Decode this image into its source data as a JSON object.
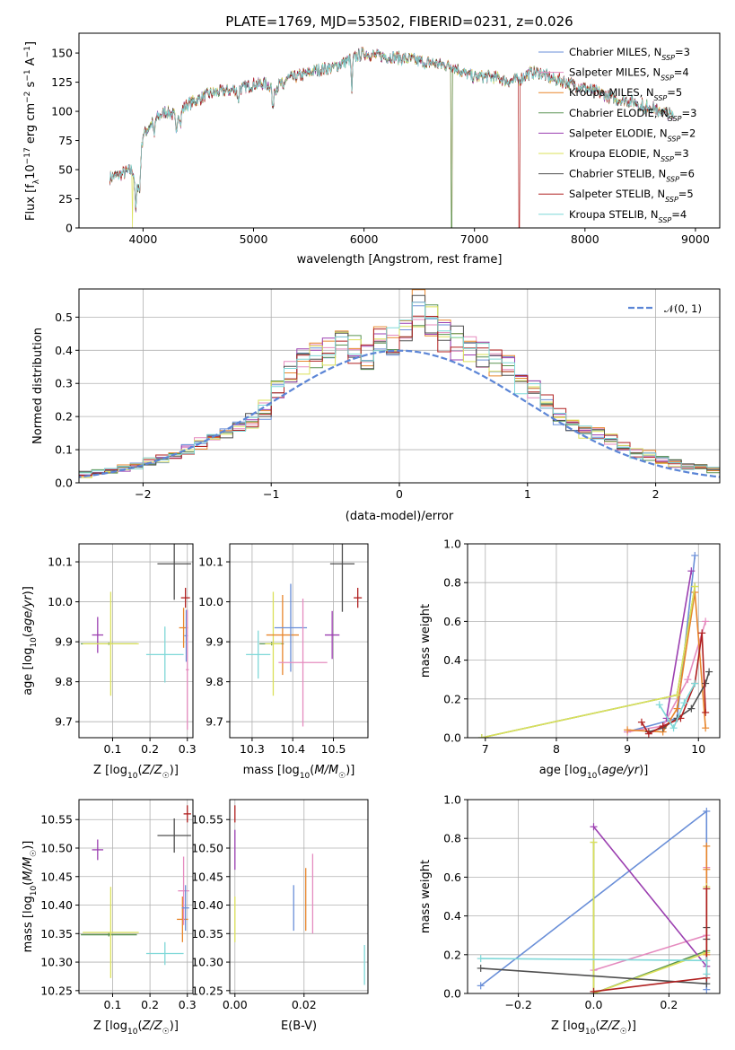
{
  "figure": {
    "title": "PLATE=1769, MJD=53502, FIBERID=0231, z=0.026"
  },
  "chart_data": [
    {
      "id": "spectrum",
      "type": "line",
      "title": "PLATE=1769, MJD=53502, FIBERID=0231, z=0.026",
      "xlabel": "wavelength [Angstrom, rest frame]",
      "ylabel": "Flux [f_λ 10^-17 erg cm^-2 s^-1 A^-1]",
      "xlim": [
        3420,
        9220
      ],
      "ylim": [
        0,
        167
      ],
      "xticks": [
        4000,
        5000,
        6000,
        7000,
        8000,
        9000
      ],
      "yticks": [
        0,
        25,
        50,
        75,
        100,
        125,
        150
      ],
      "grid": false,
      "legend_position": "upper-right",
      "continuum": {
        "x": [
          3700,
          3800,
          3900,
          3950,
          4000,
          4100,
          4200,
          4300,
          4400,
          4500,
          4600,
          4700,
          4800,
          4900,
          5000,
          5100,
          5200,
          5300,
          5400,
          5500,
          5600,
          5700,
          5800,
          5900,
          6000,
          6100,
          6200,
          6300,
          6400,
          6500,
          6600,
          6700,
          6800,
          6900,
          7000,
          7100,
          7200,
          7300,
          7400,
          7500,
          7600,
          7700,
          7800,
          7900,
          8000,
          8100,
          8200,
          8300,
          8400,
          8500,
          8600,
          8700,
          8800
        ],
        "y": [
          43,
          46,
          50,
          35,
          80,
          92,
          100,
          96,
          106,
          110,
          115,
          117,
          118,
          120,
          123,
          124,
          120,
          128,
          130,
          133,
          136,
          137,
          141,
          146,
          150,
          148,
          147,
          146,
          145,
          143,
          142,
          140,
          139,
          133,
          129,
          130,
          129,
          126,
          127,
          133,
          133,
          128,
          126,
          123,
          120,
          117,
          113,
          110,
          109,
          107,
          104,
          100,
          96
        ]
      },
      "series": [
        {
          "label": "Chabrier MILES, N_SSP=3",
          "color": "#6a8fd8"
        },
        {
          "label": "Salpeter MILES, N_SSP=4",
          "color": "#e58bbf"
        },
        {
          "label": "Kroupa MILES, N_SSP=5",
          "color": "#e8862c"
        },
        {
          "label": "Chabrier ELODIE, N_SSP=3",
          "color": "#5a9452"
        },
        {
          "label": "Salpeter ELODIE, N_SSP=2",
          "color": "#9b3fb0"
        },
        {
          "label": "Kroupa ELODIE, N_SSP=3",
          "color": "#dbe05a"
        },
        {
          "label": "Chabrier STELIB, N_SSP=6",
          "color": "#4f4f4f"
        },
        {
          "label": "Salpeter STELIB, N_SSP=5",
          "color": "#b02020"
        },
        {
          "label": "Kroupa STELIB, N_SSP=4",
          "color": "#7fd8d8"
        }
      ]
    },
    {
      "id": "residuals",
      "type": "histogram",
      "xlabel": "(data-model)/error",
      "ylabel": "Normed distribution",
      "xlim": [
        -2.5,
        2.5
      ],
      "ylim": [
        0,
        0.585
      ],
      "xticks": [
        -2,
        -1,
        0,
        1,
        2
      ],
      "yticks": [
        0.0,
        0.1,
        0.2,
        0.3,
        0.4,
        0.5
      ],
      "grid": true,
      "legend_position": "upper-right",
      "reference": {
        "label": "𝒩(0, 1)",
        "color": "#5b85d6",
        "mean": 0,
        "sigma": 1
      },
      "bin_width": 0.1,
      "envelope": [
        0.01,
        0.015,
        0.02,
        0.022,
        0.03,
        0.025,
        0.035,
        0.04,
        0.045,
        0.05,
        0.06,
        0.075,
        0.085,
        0.1,
        0.12,
        0.14,
        0.15,
        0.17,
        0.19,
        0.22,
        0.28,
        0.33,
        0.36,
        0.38,
        0.4,
        0.44,
        0.41,
        0.38,
        0.44,
        0.42,
        0.45,
        0.52,
        0.48,
        0.44,
        0.42,
        0.4,
        0.38,
        0.37,
        0.35,
        0.31,
        0.29,
        0.25,
        0.2,
        0.17,
        0.16,
        0.15,
        0.13,
        0.11,
        0.09,
        0.08,
        0.07,
        0.06,
        0.05,
        0.045,
        0.04,
        0.035,
        0.03,
        0.025,
        0.02,
        0.015
      ]
    },
    {
      "id": "age_vs_Z",
      "type": "scatter",
      "xlabel": "Z [log10(Z/Z☉)]",
      "ylabel": "age [log10(age/yr)]",
      "xlim": [
        0.01,
        0.315
      ],
      "ylim": [
        9.66,
        10.145
      ],
      "xticks": [
        0.1,
        0.2,
        0.3
      ],
      "yticks": [
        9.7,
        9.8,
        9.9,
        10.0,
        10.1
      ],
      "grid": true,
      "points": [
        {
          "x": 0.06,
          "y": 9.917,
          "xerr": 0.015,
          "yerr": 0.045,
          "c": 4
        },
        {
          "x": 0.09,
          "y": 9.895,
          "xerr": 0.075,
          "yerr": 0.003,
          "c": 3
        },
        {
          "x": 0.095,
          "y": 9.895,
          "xerr": 0.075,
          "yerr": 0.13,
          "c": 5
        },
        {
          "x": 0.24,
          "y": 9.868,
          "xerr": 0.05,
          "yerr": 0.07,
          "c": 8
        },
        {
          "x": 0.265,
          "y": 10.095,
          "xerr": 0.045,
          "yerr": 0.09,
          "c": 6
        },
        {
          "x": 0.29,
          "y": 9.935,
          "xerr": 0.012,
          "yerr": 0.05,
          "c": 2
        },
        {
          "x": 0.295,
          "y": 10.01,
          "xerr": 0.012,
          "yerr": 0.025,
          "c": 7
        },
        {
          "x": 0.297,
          "y": 9.915,
          "xerr": 0.005,
          "yerr": 0.065,
          "c": 0
        },
        {
          "x": 0.3,
          "y": 9.83,
          "xerr": 0.004,
          "yerr": 0.15,
          "c": 1
        }
      ]
    },
    {
      "id": "age_vs_mass",
      "type": "scatter",
      "xlabel": "mass [log10(M/M☉)]",
      "ylabel": "",
      "xlim": [
        10.245,
        10.585
      ],
      "ylim": [
        9.66,
        10.145
      ],
      "xticks": [
        10.3,
        10.4,
        10.5
      ],
      "yticks": [
        9.7,
        9.8,
        9.9,
        10.0,
        10.1
      ],
      "grid": true,
      "points": [
        {
          "x": 10.315,
          "y": 9.868,
          "xerr": 0.03,
          "yerr": 0.06,
          "c": 8
        },
        {
          "x": 10.348,
          "y": 9.895,
          "xerr": 0.03,
          "yerr": 0.004,
          "c": 3
        },
        {
          "x": 10.352,
          "y": 9.895,
          "xerr": 0.02,
          "yerr": 0.13,
          "c": 5
        },
        {
          "x": 10.375,
          "y": 9.917,
          "xerr": 0.04,
          "yerr": 0.1,
          "c": 2
        },
        {
          "x": 10.395,
          "y": 9.935,
          "xerr": 0.04,
          "yerr": 0.11,
          "c": 0
        },
        {
          "x": 10.425,
          "y": 9.848,
          "xerr": 0.06,
          "yerr": 0.16,
          "c": 1
        },
        {
          "x": 10.497,
          "y": 9.917,
          "xerr": 0.018,
          "yerr": 0.06,
          "c": 4
        },
        {
          "x": 10.522,
          "y": 10.095,
          "xerr": 0.03,
          "yerr": 0.12,
          "c": 6
        },
        {
          "x": 10.56,
          "y": 10.01,
          "xerr": 0.01,
          "yerr": 0.025,
          "c": 7
        }
      ]
    },
    {
      "id": "massweight_vs_age",
      "type": "line",
      "xlabel": "age [log10(age/yr)]",
      "ylabel": "mass weight",
      "xlim": [
        6.75,
        10.3
      ],
      "ylim": [
        0,
        1.0
      ],
      "xticks": [
        7,
        8,
        9,
        10
      ],
      "yticks": [
        0.0,
        0.2,
        0.4,
        0.6,
        0.8,
        1.0
      ],
      "grid": true,
      "lines": [
        {
          "c": 0,
          "x": [
            9.0,
            9.7,
            9.95
          ],
          "y": [
            0.03,
            0.1,
            0.94
          ]
        },
        {
          "c": 1,
          "x": [
            9.0,
            9.5,
            9.85,
            10.1
          ],
          "y": [
            0.03,
            0.06,
            0.3,
            0.6
          ]
        },
        {
          "c": 2,
          "x": [
            9.0,
            9.5,
            9.7,
            9.95,
            10.1
          ],
          "y": [
            0.04,
            0.03,
            0.15,
            0.75,
            0.05
          ]
        },
        {
          "c": 3,
          "x": [
            6.95,
            9.7,
            9.95
          ],
          "y": [
            0.0,
            0.22,
            0.78
          ]
        },
        {
          "c": 4,
          "x": [
            9.55,
            9.9
          ],
          "y": [
            0.1,
            0.86
          ]
        },
        {
          "c": 5,
          "x": [
            6.95,
            9.7,
            9.95
          ],
          "y": [
            0.0,
            0.22,
            0.78
          ]
        },
        {
          "c": 6,
          "x": [
            9.3,
            9.5,
            9.7,
            9.9,
            10.1,
            10.15
          ],
          "y": [
            0.03,
            0.05,
            0.1,
            0.15,
            0.28,
            0.34
          ]
        },
        {
          "c": 7,
          "x": [
            9.2,
            9.3,
            9.5,
            9.75,
            9.95,
            10.05,
            10.1
          ],
          "y": [
            0.08,
            0.02,
            0.06,
            0.1,
            0.28,
            0.54,
            0.13
          ]
        },
        {
          "c": 8,
          "x": [
            9.45,
            9.65,
            9.8,
            9.95
          ],
          "y": [
            0.17,
            0.05,
            0.18,
            0.28
          ]
        }
      ]
    },
    {
      "id": "mass_vs_Z",
      "type": "scatter",
      "xlabel": "Z [log10(Z/Z☉)]",
      "ylabel": "mass [log10(M/M☉)]",
      "xlim": [
        0.01,
        0.315
      ],
      "ylim": [
        10.245,
        10.585
      ],
      "xticks": [
        0.1,
        0.2,
        0.3
      ],
      "yticks": [
        10.25,
        10.3,
        10.35,
        10.4,
        10.45,
        10.5,
        10.55
      ],
      "grid": true,
      "points": [
        {
          "x": 0.06,
          "y": 10.497,
          "xerr": 0.015,
          "yerr": 0.018,
          "c": 4
        },
        {
          "x": 0.09,
          "y": 10.348,
          "xerr": 0.075,
          "yerr": 0.003,
          "c": 3
        },
        {
          "x": 0.095,
          "y": 10.352,
          "xerr": 0.075,
          "yerr": 0.08,
          "c": 5
        },
        {
          "x": 0.24,
          "y": 10.315,
          "xerr": 0.05,
          "yerr": 0.02,
          "c": 8
        },
        {
          "x": 0.265,
          "y": 10.522,
          "xerr": 0.045,
          "yerr": 0.03,
          "c": 6
        },
        {
          "x": 0.287,
          "y": 10.375,
          "xerr": 0.015,
          "yerr": 0.04,
          "c": 2
        },
        {
          "x": 0.29,
          "y": 10.425,
          "xerr": 0.015,
          "yerr": 0.06,
          "c": 1
        },
        {
          "x": 0.295,
          "y": 10.395,
          "xerr": 0.01,
          "yerr": 0.04,
          "c": 0
        },
        {
          "x": 0.3,
          "y": 10.56,
          "xerr": 0.01,
          "yerr": 0.015,
          "c": 7
        }
      ]
    },
    {
      "id": "mass_vs_ebv",
      "type": "scatter",
      "xlabel": "E(B-V)",
      "ylabel": "",
      "xlim": [
        -0.0015,
        0.0385
      ],
      "ylim": [
        10.245,
        10.585
      ],
      "xticks": [
        0.0,
        0.02
      ],
      "yticks": [
        10.25,
        10.3,
        10.35,
        10.4,
        10.45,
        10.5,
        10.55
      ],
      "grid": true,
      "points": [
        {
          "x": 0.0,
          "y": 10.56,
          "xerr": 0,
          "yerr": 0.015,
          "c": 7
        },
        {
          "x": 0.0,
          "y": 10.497,
          "xerr": 0,
          "yerr": 0.035,
          "c": 4
        },
        {
          "x": 0.0,
          "y": 10.375,
          "xerr": 0,
          "yerr": 0.04,
          "c": 5
        },
        {
          "x": 0.017,
          "y": 10.395,
          "xerr": 0,
          "yerr": 0.04,
          "c": 0
        },
        {
          "x": 0.0205,
          "y": 10.41,
          "xerr": 0,
          "yerr": 0.055,
          "c": 2
        },
        {
          "x": 0.0225,
          "y": 10.42,
          "xerr": 0,
          "yerr": 0.07,
          "c": 1
        },
        {
          "x": 0.0375,
          "y": 10.295,
          "xerr": 0,
          "yerr": 0.035,
          "c": 8
        }
      ]
    },
    {
      "id": "massweight_vs_Z",
      "type": "line",
      "xlabel": "Z [log10(Z/Z☉)]",
      "ylabel": "mass weight",
      "xlim": [
        -0.335,
        0.335
      ],
      "ylim": [
        0,
        1.0
      ],
      "xticks": [
        -0.2,
        0.0,
        0.2
      ],
      "yticks": [
        0.0,
        0.2,
        0.4,
        0.6,
        0.8,
        1.0
      ],
      "grid": true,
      "lines": [
        {
          "c": 0,
          "x": [
            -0.3,
            0.3,
            0.3
          ],
          "y": [
            0.04,
            0.94,
            0.02
          ]
        },
        {
          "c": 1,
          "x": [
            0.0,
            0.3,
            0.3
          ],
          "y": [
            0.12,
            0.3,
            0.65
          ]
        },
        {
          "c": 2,
          "x": [
            0.3,
            0.3,
            0.3
          ],
          "y": [
            0.76,
            0.64,
            0.2
          ]
        },
        {
          "c": 3,
          "x": [
            0.0,
            0.0,
            0.3
          ],
          "y": [
            0.78,
            0.0,
            0.22
          ]
        },
        {
          "c": 4,
          "x": [
            0.0,
            0.3
          ],
          "y": [
            0.86,
            0.14
          ]
        },
        {
          "c": 5,
          "x": [
            0.0,
            0.0,
            0.3,
            0.3
          ],
          "y": [
            0.78,
            0.0,
            0.21,
            0.55
          ]
        },
        {
          "c": 6,
          "x": [
            -0.3,
            0.3,
            0.3,
            0.3
          ],
          "y": [
            0.13,
            0.05,
            0.34,
            0.28
          ]
        },
        {
          "c": 7,
          "x": [
            0.0,
            0.3,
            0.3
          ],
          "y": [
            0.01,
            0.08,
            0.54
          ]
        },
        {
          "c": 8,
          "x": [
            -0.3,
            0.3,
            0.3
          ],
          "y": [
            0.18,
            0.17,
            0.1
          ]
        }
      ]
    }
  ]
}
